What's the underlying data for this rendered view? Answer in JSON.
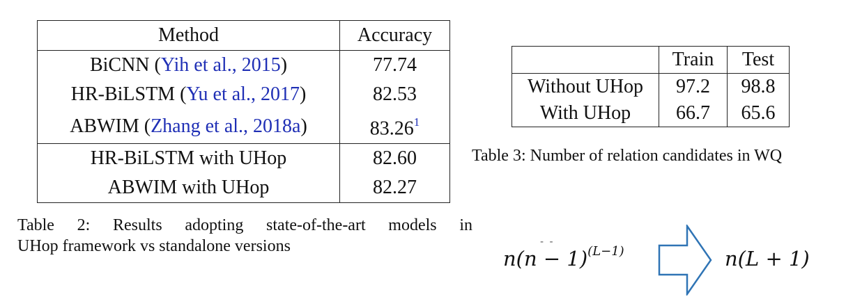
{
  "table2": {
    "header": {
      "method": "Method",
      "accuracy": "Accuracy"
    },
    "rows": [
      {
        "name": "BiCNN (",
        "cite": "Yih et al., 2015",
        "close": ")",
        "value": "77.74",
        "footnote": ""
      },
      {
        "name": "HR-BiLSTM (",
        "cite": "Yu et al., 2017",
        "close": ")",
        "value": "82.53",
        "footnote": ""
      },
      {
        "name": "ABWIM (",
        "cite": "Zhang et al., 2018a",
        "close": ")",
        "value": "83.26",
        "footnote": "1"
      }
    ],
    "uhop_rows": [
      {
        "name": "HR-BiLSTM with UHop",
        "value": "82.60"
      },
      {
        "name": "ABWIM with UHop",
        "value": "82.27"
      }
    ],
    "caption_line1": "Table 2:  Results adopting state-of-the-art models in",
    "caption_line2": "UHop framework vs standalone versions"
  },
  "table3": {
    "header": {
      "blank": "",
      "train": "Train",
      "test": "Test"
    },
    "rows": [
      {
        "label": "Without UHop",
        "train": "97.2",
        "test": "98.8"
      },
      {
        "label": "With UHop",
        "train": "66.7",
        "test": "65.6"
      }
    ],
    "caption": "Table 3: Number of relation candidates in WQ"
  },
  "formula": {
    "left_base": "n(n − 1)",
    "left_exponent": "(L−1)",
    "right": "n(L + 1)",
    "ticks": "- -"
  },
  "colors": {
    "citation": "#1f2fb5",
    "arrow": "#2f74b5"
  }
}
